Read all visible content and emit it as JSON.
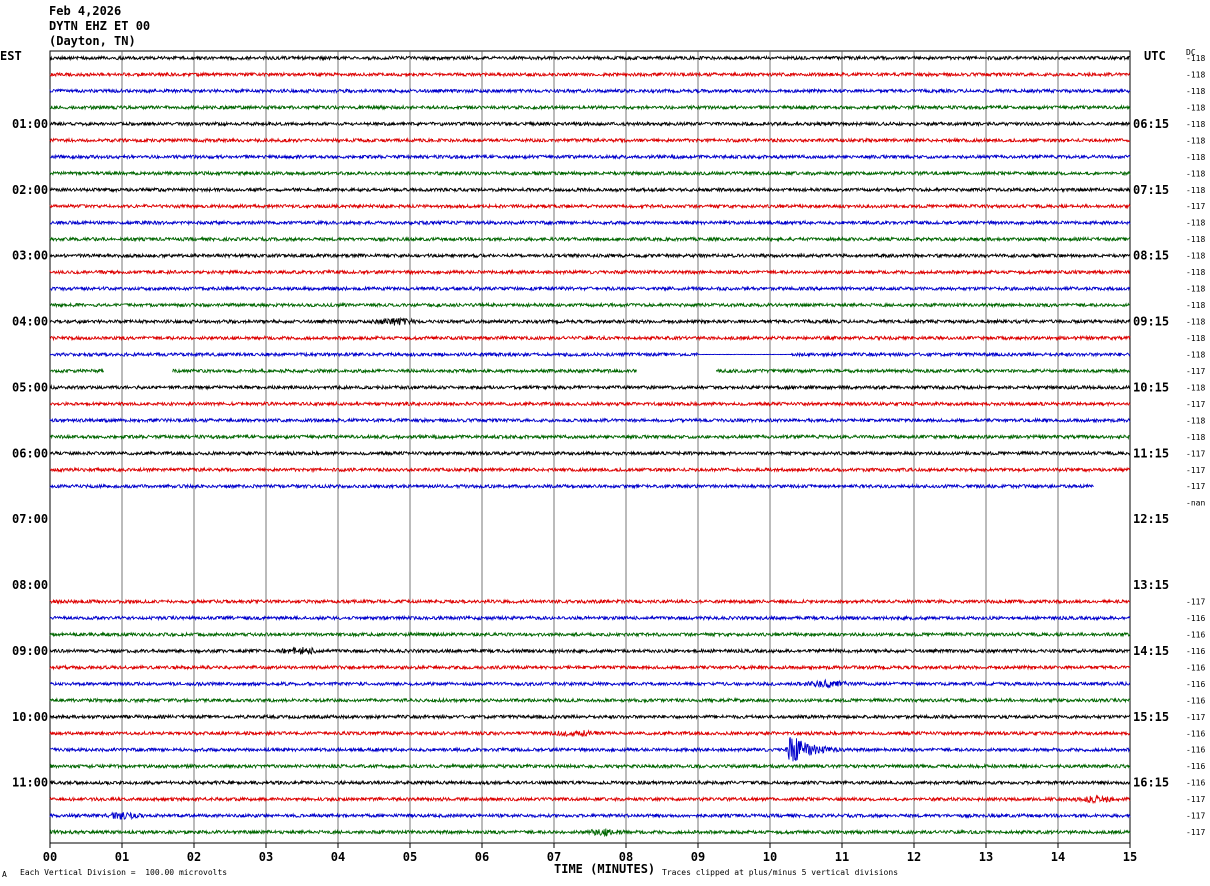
{
  "header": {
    "date": "Feb 4,2026",
    "station": "DYTN EHZ ET 00",
    "location": "(Dayton, TN)"
  },
  "chart_data": {
    "type": "line",
    "subtype": "helicorder",
    "left_axis_label": "EST",
    "right_axis_label": "UTC",
    "dc_label": "DC",
    "xlabel": "TIME (MINUTES)",
    "xlim": [
      0,
      15
    ],
    "x_ticks": [
      "00",
      "01",
      "02",
      "03",
      "04",
      "05",
      "06",
      "07",
      "08",
      "09",
      "10",
      "11",
      "12",
      "13",
      "14",
      "15"
    ],
    "est_hour_labels": [
      "01:00",
      "02:00",
      "03:00",
      "04:00",
      "05:00",
      "06:00",
      "07:00",
      "08:00",
      "09:00",
      "10:00",
      "11:00"
    ],
    "utc_hour_labels": [
      "06:15",
      "07:15",
      "08:15",
      "09:15",
      "10:15",
      "11:15",
      "12:15",
      "13:15",
      "14:15",
      "15:15",
      "16:15"
    ],
    "trace_colors": [
      "#000000",
      "#dd0000",
      "#0000cc",
      "#006600"
    ],
    "traces": [
      {
        "row": 0,
        "dc": "-118",
        "color": "black",
        "start": 0,
        "end": 15
      },
      {
        "row": 1,
        "dc": "-118",
        "color": "red",
        "start": 0,
        "end": 15
      },
      {
        "row": 2,
        "dc": "-118",
        "color": "blue",
        "start": 0,
        "end": 15
      },
      {
        "row": 3,
        "dc": "-118",
        "color": "green",
        "start": 0,
        "end": 15
      },
      {
        "row": 4,
        "dc": "-118",
        "color": "black",
        "start": 0,
        "end": 15
      },
      {
        "row": 5,
        "dc": "-118",
        "color": "red",
        "start": 0,
        "end": 15
      },
      {
        "row": 6,
        "dc": "-118",
        "color": "blue",
        "start": 0,
        "end": 15
      },
      {
        "row": 7,
        "dc": "-118",
        "color": "green",
        "start": 0,
        "end": 15
      },
      {
        "row": 8,
        "dc": "-118",
        "color": "black",
        "start": 0,
        "end": 15
      },
      {
        "row": 9,
        "dc": "-117",
        "color": "red",
        "start": 0,
        "end": 15
      },
      {
        "row": 10,
        "dc": "-118",
        "color": "blue",
        "start": 0,
        "end": 15
      },
      {
        "row": 11,
        "dc": "-118",
        "color": "green",
        "start": 0,
        "end": 15
      },
      {
        "row": 12,
        "dc": "-118",
        "color": "black",
        "start": 0,
        "end": 15
      },
      {
        "row": 13,
        "dc": "-118",
        "color": "red",
        "start": 0,
        "end": 15
      },
      {
        "row": 14,
        "dc": "-118",
        "color": "blue",
        "start": 0,
        "end": 15
      },
      {
        "row": 15,
        "dc": "-118",
        "color": "green",
        "start": 0,
        "end": 15
      },
      {
        "row": 16,
        "dc": "-118",
        "color": "black",
        "start": 0,
        "end": 15,
        "burst_at": 4.8,
        "burst_amp": 3
      },
      {
        "row": 17,
        "dc": "-118",
        "color": "red",
        "start": 0,
        "end": 15
      },
      {
        "row": 18,
        "dc": "-118",
        "color": "blue",
        "start": 0,
        "end": 15,
        "flat": [
          [
            9.0,
            10.3
          ]
        ],
        "gaps": [
          [
            10.35,
            10.35
          ],
          [
            10.35,
            10.35
          ]
        ]
      },
      {
        "row": 19,
        "dc": "-117",
        "color": "green",
        "start": 0,
        "end": 15,
        "gaps": [
          [
            0.75,
            1.7
          ],
          [
            8.15,
            8.2
          ],
          [
            8.2,
            9.25
          ]
        ]
      },
      {
        "row": 20,
        "dc": "-118",
        "color": "black",
        "start": 0,
        "end": 15
      },
      {
        "row": 21,
        "dc": "-117",
        "color": "red",
        "start": 0,
        "end": 15
      },
      {
        "row": 22,
        "dc": "-118",
        "color": "blue",
        "start": 0,
        "end": 15
      },
      {
        "row": 23,
        "dc": "-118",
        "color": "green",
        "start": 0,
        "end": 15
      },
      {
        "row": 24,
        "dc": "-117",
        "color": "black",
        "start": 0,
        "end": 15
      },
      {
        "row": 25,
        "dc": "-117",
        "color": "red",
        "start": 0,
        "end": 15
      },
      {
        "row": 26,
        "dc": "-117",
        "color": "blue",
        "start": 0,
        "end": 14.5
      },
      {
        "row": 27,
        "dc": "-nan",
        "color": "green",
        "start": 0,
        "end": 0
      },
      {
        "row": 33,
        "dc": "-117",
        "color": "red",
        "start": 0,
        "end": 15
      },
      {
        "row": 34,
        "dc": "-116",
        "color": "blue",
        "start": 0,
        "end": 15
      },
      {
        "row": 35,
        "dc": "-116",
        "color": "green",
        "start": 0,
        "end": 15
      },
      {
        "row": 36,
        "dc": "-116",
        "color": "black",
        "start": 0,
        "end": 15,
        "burst_at": 3.5,
        "burst_amp": 2.5
      },
      {
        "row": 37,
        "dc": "-116",
        "color": "red",
        "start": 0,
        "end": 15
      },
      {
        "row": 38,
        "dc": "-116",
        "color": "blue",
        "start": 0,
        "end": 15,
        "burst_at": 10.8,
        "burst_amp": 2.5
      },
      {
        "row": 39,
        "dc": "-116",
        "color": "green",
        "start": 0,
        "end": 15
      },
      {
        "row": 40,
        "dc": "-117",
        "color": "black",
        "start": 0,
        "end": 15
      },
      {
        "row": 41,
        "dc": "-116",
        "color": "red",
        "start": 0,
        "end": 15,
        "burst_at": 7.3,
        "burst_amp": 2.5
      },
      {
        "row": 42,
        "dc": "-116",
        "color": "blue",
        "start": 0,
        "end": 15,
        "quake_at": 10.25,
        "quake_amp": 14
      },
      {
        "row": 43,
        "dc": "-116",
        "color": "green",
        "start": 0,
        "end": 15
      },
      {
        "row": 44,
        "dc": "-116",
        "color": "black",
        "start": 0,
        "end": 15
      },
      {
        "row": 45,
        "dc": "-117",
        "color": "red",
        "start": 0,
        "end": 15,
        "burst_at": 14.5,
        "burst_amp": 2.5
      },
      {
        "row": 46,
        "dc": "-117",
        "color": "blue",
        "start": 0,
        "end": 15,
        "burst_at": 1.0,
        "burst_amp": 2.5
      },
      {
        "row": 47,
        "dc": "-117",
        "color": "green",
        "start": 0,
        "end": 15,
        "burst_at": 7.7,
        "burst_amp": 2.5
      }
    ]
  },
  "footer": {
    "corner_mark": "A",
    "scale_note": "Each Vertical Division =  100.00 microvolts",
    "clip_note": "Traces clipped at plus/minus 5 vertical divisions"
  }
}
